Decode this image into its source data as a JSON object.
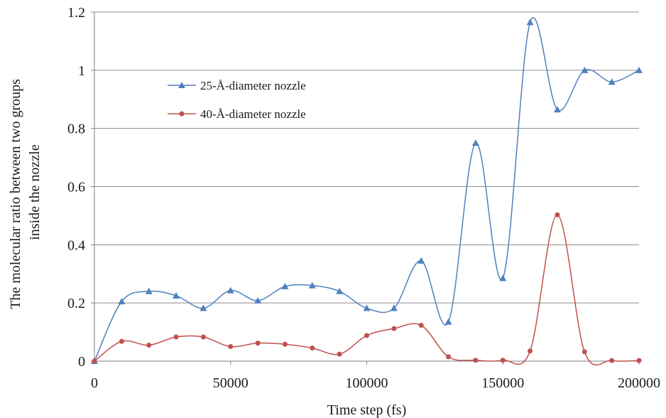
{
  "chart_data": {
    "type": "line",
    "title": "",
    "xlabel": "Time step (fs)",
    "ylabel_lines": [
      "The molecular ratio between two groups",
      "inside the nozzle"
    ],
    "xlim": [
      0,
      200000
    ],
    "ylim": [
      0,
      1.2
    ],
    "x_ticks": [
      0,
      50000,
      100000,
      150000,
      200000
    ],
    "x_tick_labels": [
      "0",
      "50000",
      "100000",
      "150000",
      "200000"
    ],
    "y_ticks": [
      0,
      0.2,
      0.4,
      0.6,
      0.8,
      1,
      1.2
    ],
    "y_tick_labels": [
      "0",
      "0.2",
      "0.4",
      "0.6",
      "0.8",
      "1",
      "1.2"
    ],
    "grid": "horizontal",
    "smooth": true,
    "legend_position": "upper-left inside plot",
    "x": [
      0,
      10000,
      20000,
      30000,
      40000,
      50000,
      60000,
      70000,
      80000,
      90000,
      100000,
      110000,
      120000,
      130000,
      140000,
      150000,
      160000,
      170000,
      180000,
      190000,
      200000
    ],
    "series": [
      {
        "name": "25-Å-diameter nozzle",
        "color": "#4f81bd",
        "marker": "triangle",
        "values": [
          0,
          0.205,
          0.24,
          0.225,
          0.182,
          0.243,
          0.208,
          0.257,
          0.26,
          0.24,
          0.182,
          0.182,
          0.345,
          0.135,
          0.75,
          0.285,
          1.165,
          0.865,
          1.0,
          0.96,
          1.0
        ]
      },
      {
        "name": "40-Å-diameter nozzle",
        "color": "#c0504d",
        "marker": "circle",
        "values": [
          0,
          0.068,
          0.055,
          0.083,
          0.083,
          0.05,
          0.062,
          0.058,
          0.045,
          0.024,
          0.088,
          0.112,
          0.123,
          0.015,
          0.003,
          0.003,
          0.035,
          0.503,
          0.032,
          0.002,
          0.002
        ]
      }
    ]
  }
}
